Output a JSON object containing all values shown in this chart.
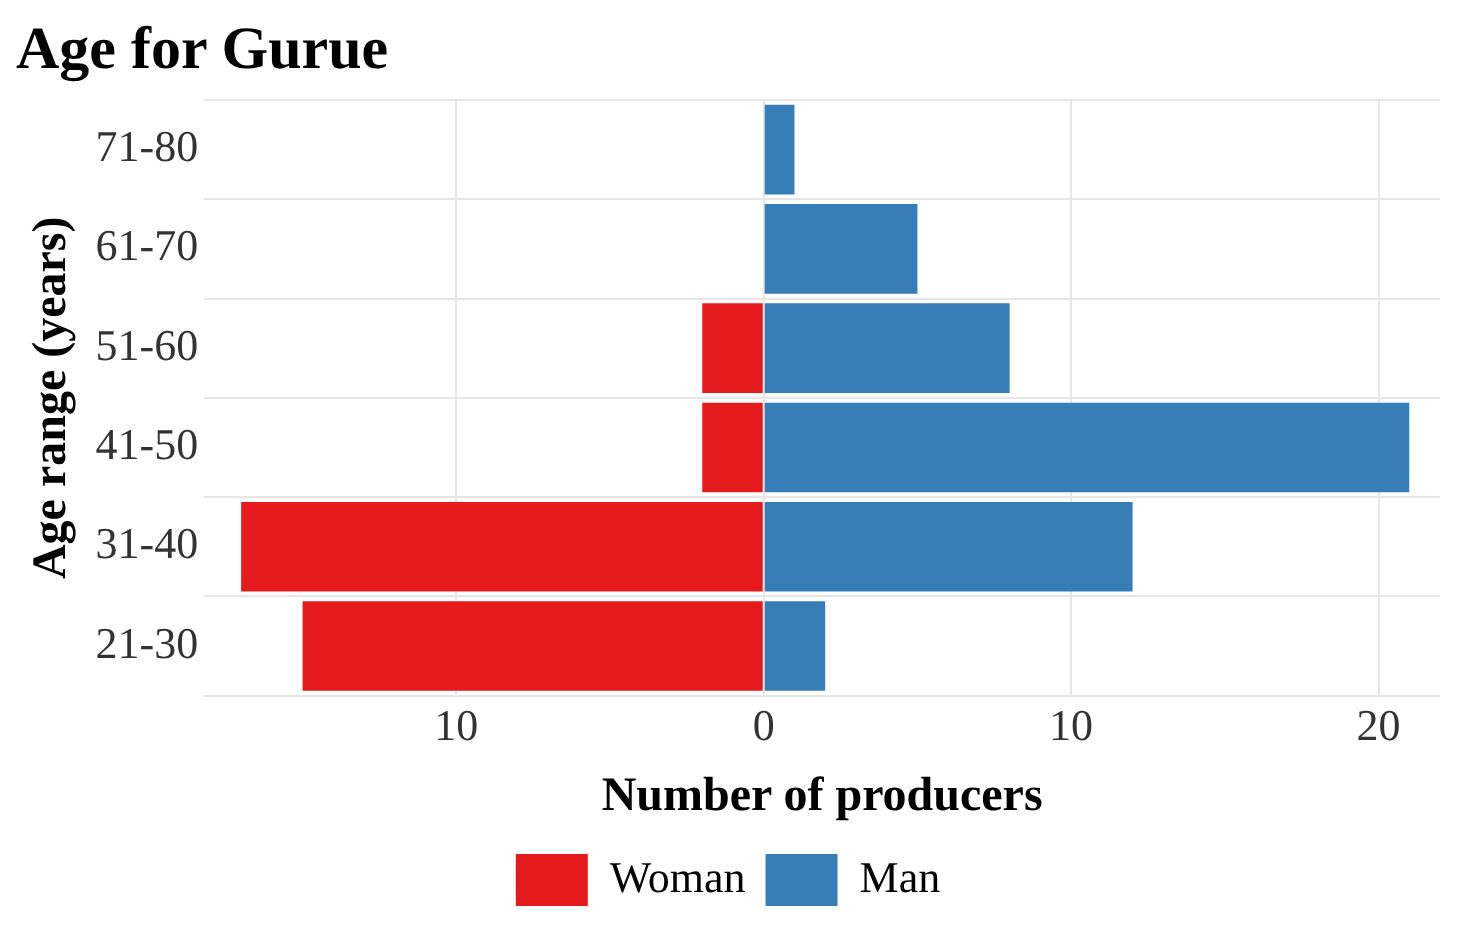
{
  "chart_data": {
    "type": "bar",
    "title": "Age for Gurue",
    "xlabel": "Number of producers",
    "ylabel": "Age range (years)",
    "orientation": "horizontal",
    "stacked": true,
    "categories": [
      "71-80",
      "61-70",
      "51-60",
      "41-50",
      "31-40",
      "21-30"
    ],
    "series": [
      {
        "name": "Woman",
        "color": "#e41a1c",
        "values": [
          null,
          null,
          -2,
          -2,
          -17,
          -15
        ]
      },
      {
        "name": "Man",
        "color": "#377eb8",
        "values": [
          1,
          5,
          8,
          21,
          12,
          2
        ]
      }
    ],
    "xlim": [
      -18.2,
      22
    ],
    "xticks": [
      {
        "value": -10,
        "label": "10"
      },
      0,
      10,
      20
    ],
    "grid": true,
    "legend": "bottom"
  }
}
